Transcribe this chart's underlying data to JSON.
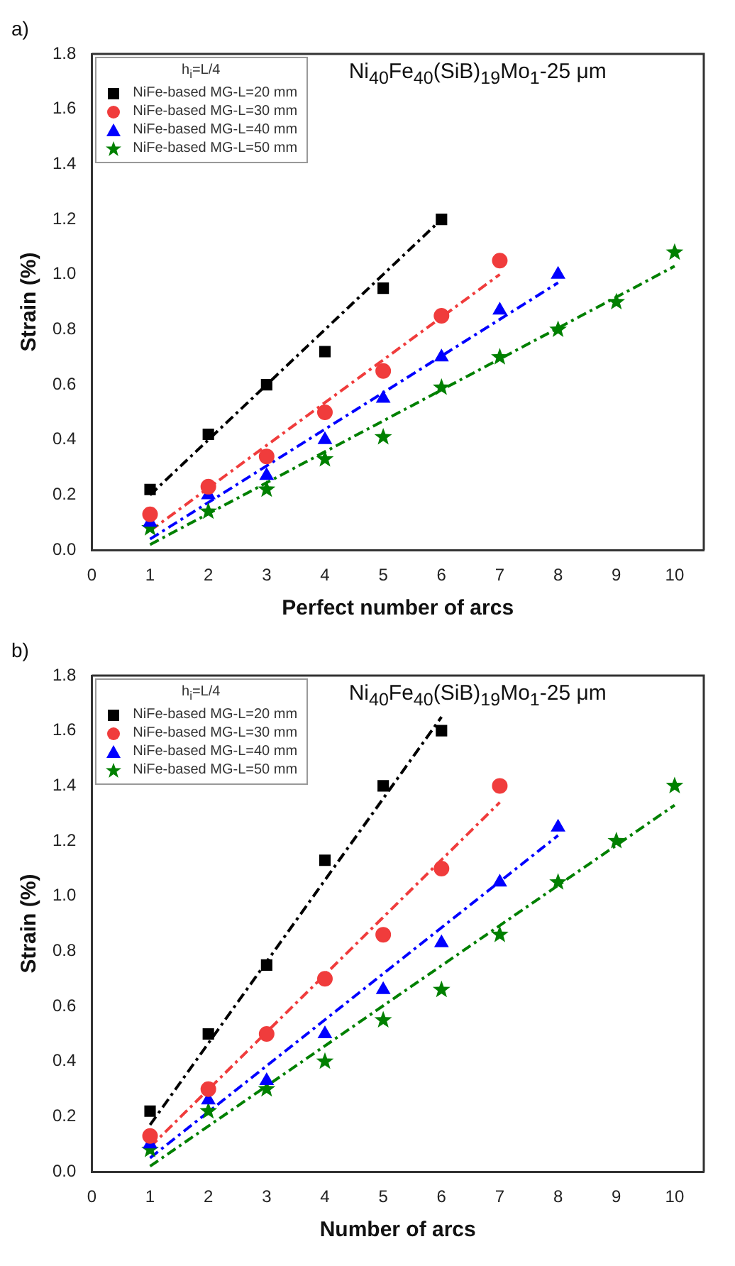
{
  "chart_data": [
    {
      "type": "scatter",
      "title": "Ni$_{40}$Fe$_{40}$(SiB)$_{19}$Mo$_{1}$-25 μm",
      "xlabel": "Perfect number of arcs",
      "ylabel": "Strain (%)",
      "legend_title": "h$_{i}$=L/4",
      "annotations": [
        "a)"
      ],
      "xlim": [
        0,
        10.5
      ],
      "xticks": [
        0,
        1,
        2,
        3,
        4,
        5,
        6,
        7,
        8,
        9,
        10
      ],
      "ylim": [
        0,
        1.8
      ],
      "yticks": [
        {
          "value": 0,
          "label": "0.0"
        },
        {
          "value": 0.2,
          "label": "0.2"
        },
        {
          "value": 0.4,
          "label": "0.4"
        },
        {
          "value": 0.6,
          "label": "0.6"
        },
        {
          "value": 0.8,
          "label": "0.8"
        },
        {
          "value": 1.0,
          "label": "1.0"
        },
        {
          "value": 1.2,
          "label": "1.2"
        },
        {
          "value": 1.4,
          "label": "1.4"
        },
        {
          "value": 1.6,
          "label": "1.6"
        },
        {
          "value": 1.8,
          "label": "1.8"
        }
      ],
      "grid": false,
      "legend": "top left",
      "series": [
        {
          "name": "NiFe-based MG-L=20 mm",
          "color": "#000000",
          "marker": "square",
          "x": [
            1,
            2,
            3,
            4,
            5,
            6
          ],
          "values": [
            0.22,
            0.42,
            0.6,
            0.72,
            0.95,
            1.2
          ]
        },
        {
          "name": "NiFe-based MG-L=30 mm",
          "color": "#f03c3c",
          "marker": "circle",
          "x": [
            1,
            2,
            3,
            4,
            5,
            6,
            7
          ],
          "values": [
            0.13,
            0.23,
            0.34,
            0.5,
            0.65,
            0.85,
            1.05
          ]
        },
        {
          "name": "NiFe-based MG-L=40 mm",
          "color": "#0000ff",
          "marker": "triangle",
          "x": [
            1,
            2,
            3,
            4,
            5,
            6,
            7,
            8
          ],
          "values": [
            0.1,
            0.2,
            0.27,
            0.4,
            0.55,
            0.7,
            0.87,
            1.0
          ]
        },
        {
          "name": "NiFe-based MG-L=50 mm",
          "color": "#008000",
          "marker": "star",
          "x": [
            1,
            2,
            3,
            4,
            5,
            6,
            7,
            8,
            9,
            10
          ],
          "values": [
            0.08,
            0.14,
            0.22,
            0.33,
            0.41,
            0.59,
            0.7,
            0.8,
            0.9,
            1.08
          ]
        },
        {
          "type": "line",
          "color": "#000000",
          "line_style": "dashed",
          "x": [
            1,
            6
          ],
          "values": [
            0.2,
            1.2
          ]
        },
        {
          "type": "line",
          "color": "#f03c3c",
          "line_style": "dashed",
          "x": [
            1,
            7
          ],
          "values": [
            0.07,
            1.0
          ]
        },
        {
          "type": "line",
          "color": "#0000ff",
          "line_style": "dashed",
          "x": [
            1,
            8
          ],
          "values": [
            0.04,
            0.97
          ]
        },
        {
          "type": "line",
          "color": "#008000",
          "line_style": "dashed",
          "x": [
            1,
            10
          ],
          "values": [
            0.02,
            1.03
          ]
        }
      ]
    },
    {
      "type": "scatter",
      "title": "Ni$_{40}$Fe$_{40}$(SiB)$_{19}$Mo$_{1}$-25 μm",
      "xlabel": "Number of arcs",
      "ylabel": "Strain (%)",
      "legend_title": "h$_{i}$=L/4",
      "annotations": [
        "b)"
      ],
      "xlim": [
        0,
        10.5
      ],
      "xticks": [
        0,
        1,
        2,
        3,
        4,
        5,
        6,
        7,
        8,
        9,
        10
      ],
      "ylim": [
        0,
        1.8
      ],
      "yticks": [
        {
          "value": 0,
          "label": "0.0"
        },
        {
          "value": 0.2,
          "label": "0.2"
        },
        {
          "value": 0.4,
          "label": "0.4"
        },
        {
          "value": 0.6,
          "label": "0.6"
        },
        {
          "value": 0.8,
          "label": "0.8"
        },
        {
          "value": 1.0,
          "label": "1.0"
        },
        {
          "value": 1.2,
          "label": "1.2"
        },
        {
          "value": 1.4,
          "label": "1.4"
        },
        {
          "value": 1.6,
          "label": "1.6"
        },
        {
          "value": 1.8,
          "label": "1.8"
        }
      ],
      "grid": false,
      "legend": "top left",
      "series": [
        {
          "name": "NiFe-based MG-L=20 mm",
          "color": "#000000",
          "marker": "square",
          "x": [
            1,
            2,
            3,
            4,
            5,
            6
          ],
          "values": [
            0.22,
            0.5,
            0.75,
            1.13,
            1.4,
            1.6
          ]
        },
        {
          "name": "NiFe-based MG-L=30 mm",
          "color": "#f03c3c",
          "marker": "circle",
          "x": [
            1,
            2,
            3,
            4,
            5,
            6,
            7
          ],
          "values": [
            0.13,
            0.3,
            0.5,
            0.7,
            0.86,
            1.1,
            1.4
          ]
        },
        {
          "name": "NiFe-based MG-L=40 mm",
          "color": "#0000ff",
          "marker": "triangle",
          "x": [
            1,
            2,
            3,
            4,
            5,
            6,
            7,
            8
          ],
          "values": [
            0.1,
            0.26,
            0.33,
            0.5,
            0.66,
            0.83,
            1.05,
            1.25
          ]
        },
        {
          "name": "NiFe-based MG-L=50 mm",
          "color": "#008000",
          "marker": "star",
          "x": [
            1,
            2,
            3,
            4,
            5,
            6,
            7,
            8,
            9,
            10
          ],
          "values": [
            0.08,
            0.22,
            0.3,
            0.4,
            0.55,
            0.66,
            0.86,
            1.05,
            1.2,
            1.4
          ]
        },
        {
          "type": "line",
          "color": "#000000",
          "line_style": "dashed",
          "x": [
            1,
            6
          ],
          "values": [
            0.17,
            1.65
          ]
        },
        {
          "type": "line",
          "color": "#f03c3c",
          "line_style": "dashed",
          "x": [
            1,
            7
          ],
          "values": [
            0.09,
            1.34
          ]
        },
        {
          "type": "line",
          "color": "#0000ff",
          "line_style": "dashed",
          "x": [
            1,
            8
          ],
          "values": [
            0.05,
            1.22
          ]
        },
        {
          "type": "line",
          "color": "#008000",
          "line_style": "dashed",
          "x": [
            1,
            10
          ],
          "values": [
            0.02,
            1.33
          ]
        }
      ]
    }
  ]
}
